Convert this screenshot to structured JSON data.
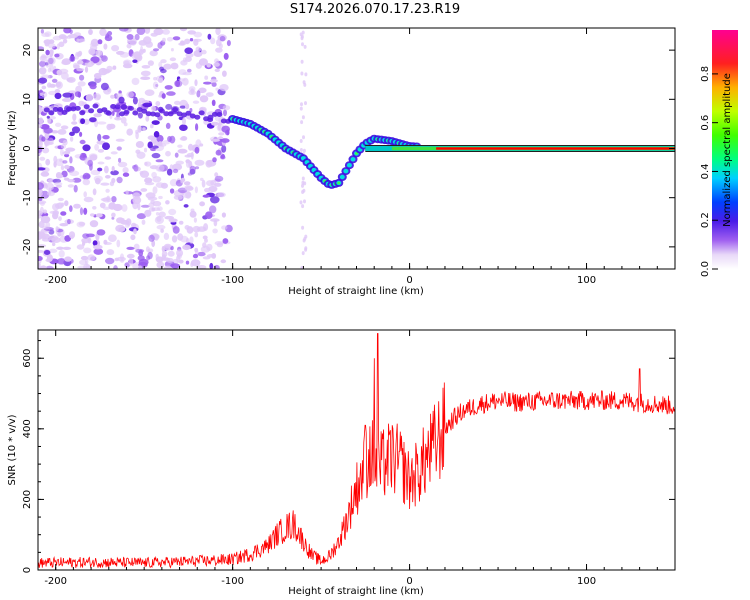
{
  "figure": {
    "title": "S174.2026.070.17.23.R19"
  },
  "chart_data": [
    {
      "type": "heatmap",
      "title": "S174.2026.070.17.23.R19",
      "xlabel": "Height of straight line (km)",
      "ylabel": "Frequency (Hz)",
      "xlim": [
        -210,
        150
      ],
      "ylim": [
        -24.5,
        24.5
      ],
      "xticks": [
        -200,
        -100,
        0,
        100
      ],
      "yticks": [
        -20,
        -10,
        0,
        10,
        20
      ],
      "colorbar": {
        "label": "Normalized spectral amplitude",
        "range": [
          0,
          0.98
        ],
        "ticks": [
          0.0,
          0.2,
          0.4,
          0.6,
          0.8
        ],
        "tick_labels": [
          "0.0",
          "0.2",
          "0.4",
          "0.6",
          "0.8"
        ],
        "colormap": "rainbow (white-violet-blue-cyan-green-yellow-red-magenta)"
      },
      "ridge": {
        "description": "dominant tone frequency vs height",
        "x": [
          -210,
          -180,
          -150,
          -120,
          -100,
          -90,
          -80,
          -70,
          -60,
          -50,
          -45,
          -40,
          -35,
          -30,
          -25,
          -20,
          -10,
          0,
          20,
          150
        ],
        "y": [
          8,
          8,
          7.5,
          7,
          6,
          5,
          3,
          0,
          -2,
          -6,
          -7.5,
          -7,
          -4,
          -1,
          1,
          2,
          1.5,
          0.5,
          0,
          0
        ]
      },
      "colors": {
        "noise_low": "#e0c8f8",
        "noise_mid": "#9a5cf0",
        "noise_high": "#5a1ce0",
        "line": "#ff0000",
        "ridge": "#00e0e0"
      }
    },
    {
      "type": "line",
      "xlabel": "Height of straight line (km)",
      "ylabel": "SNR (10 * v/v)",
      "xlim": [
        -210,
        150
      ],
      "ylim": [
        0,
        680
      ],
      "xticks": [
        -200,
        -100,
        0,
        100
      ],
      "yticks": [
        0,
        200,
        400,
        600
      ],
      "series": [
        {
          "name": "SNR",
          "color": "#ff0000",
          "x": [
            -210,
            -180,
            -150,
            -120,
            -100,
            -90,
            -80,
            -75,
            -70,
            -65,
            -60,
            -55,
            -50,
            -45,
            -40,
            -35,
            -30,
            -25,
            -22,
            -20,
            -18,
            -15,
            -10,
            -5,
            0,
            5,
            10,
            15,
            20,
            25,
            30,
            40,
            50,
            60,
            80,
            100,
            120,
            140,
            150
          ],
          "y": [
            20,
            22,
            20,
            25,
            30,
            45,
            70,
            100,
            120,
            130,
            80,
            40,
            25,
            40,
            80,
            150,
            230,
            300,
            330,
            310,
            280,
            300,
            320,
            300,
            250,
            280,
            320,
            360,
            400,
            430,
            450,
            470,
            480,
            475,
            480,
            480,
            480,
            470,
            465
          ]
        }
      ],
      "spikes": [
        {
          "x": -18,
          "y": 670
        },
        {
          "x": -20,
          "y": 600
        },
        {
          "x": -25,
          "y": 410
        },
        {
          "x": 130,
          "y": 570
        }
      ]
    }
  ]
}
